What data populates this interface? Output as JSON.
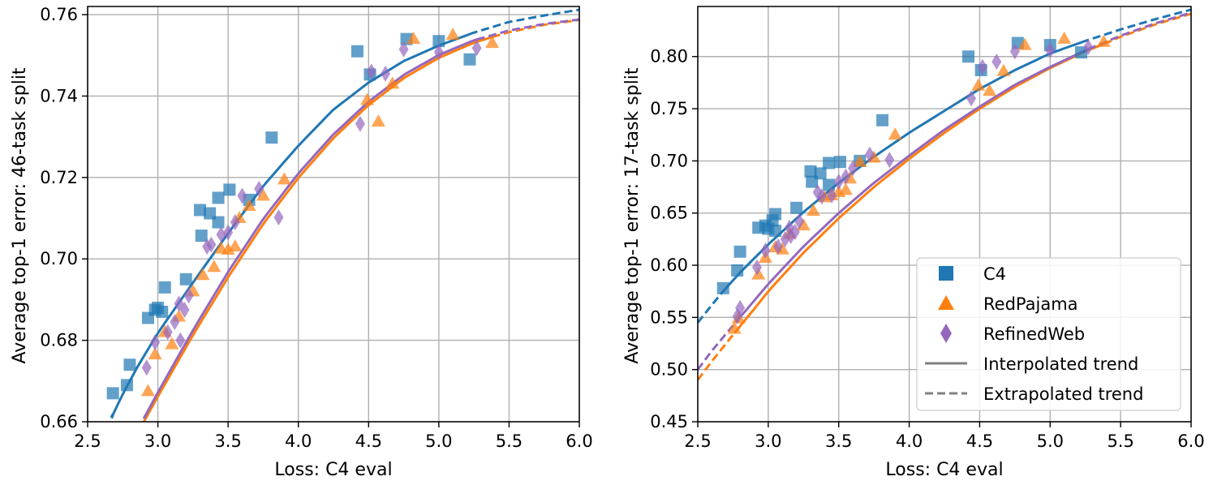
{
  "colors": {
    "c4": "#1f77b4",
    "redpajama": "#ff7f0e",
    "refinedweb": "#9467bd",
    "grid": "#b0b0b0",
    "legend_line": "#808080"
  },
  "legend": {
    "items": [
      {
        "label": "C4",
        "marker": "square",
        "color_key": "c4"
      },
      {
        "label": "RedPajama",
        "marker": "triangle",
        "color_key": "redpajama"
      },
      {
        "label": "RefinedWeb",
        "marker": "diamond",
        "color_key": "refinedweb"
      },
      {
        "label": "Interpolated trend",
        "marker": "solid-line",
        "color_key": "legend_line"
      },
      {
        "label": "Extrapolated trend",
        "marker": "dashed-line",
        "color_key": "legend_line"
      }
    ]
  },
  "chart_data": [
    {
      "type": "scatter",
      "title": "",
      "xlabel": "Loss: C4 eval",
      "ylabel": "Average top-1 error: 46-task split",
      "xlim": [
        2.5,
        6.0
      ],
      "ylim": [
        0.66,
        0.762
      ],
      "xticks": [
        2.5,
        3.0,
        3.5,
        4.0,
        4.5,
        5.0,
        5.5,
        6.0
      ],
      "yticks": [
        0.66,
        0.68,
        0.7,
        0.72,
        0.74,
        0.76
      ],
      "xtick_labels": [
        "2.5",
        "3.0",
        "3.5",
        "4.0",
        "4.5",
        "5.0",
        "5.5",
        "6.0"
      ],
      "ytick_labels": [
        "0.66",
        "0.68",
        "0.70",
        "0.72",
        "0.74",
        "0.76"
      ],
      "grid": true,
      "legend": "none",
      "series": [
        {
          "name": "C4",
          "color_key": "c4",
          "marker": "square",
          "points": [
            [
              2.68,
              0.667
            ],
            [
              2.78,
              0.669
            ],
            [
              2.8,
              0.674
            ],
            [
              2.93,
              0.6855
            ],
            [
              2.98,
              0.6875
            ],
            [
              3.0,
              0.688
            ],
            [
              3.03,
              0.687
            ],
            [
              3.05,
              0.693
            ],
            [
              3.2,
              0.695
            ],
            [
              3.3,
              0.712
            ],
            [
              3.31,
              0.7057
            ],
            [
              3.37,
              0.7112
            ],
            [
              3.43,
              0.715
            ],
            [
              3.43,
              0.709
            ],
            [
              3.51,
              0.717
            ],
            [
              3.65,
              0.7145
            ],
            [
              3.81,
              0.7298
            ],
            [
              4.42,
              0.751
            ],
            [
              4.51,
              0.7453
            ],
            [
              4.77,
              0.754
            ],
            [
              5.0,
              0.7535
            ],
            [
              5.22,
              0.749
            ]
          ]
        },
        {
          "name": "RedPajama",
          "color_key": "redpajama",
          "marker": "triangle",
          "points": [
            [
              2.93,
              0.6675
            ],
            [
              2.98,
              0.6765
            ],
            [
              3.05,
              0.682
            ],
            [
              3.1,
              0.679
            ],
            [
              3.15,
              0.6858
            ],
            [
              3.25,
              0.692
            ],
            [
              3.32,
              0.696
            ],
            [
              3.4,
              0.698
            ],
            [
              3.45,
              0.7025
            ],
            [
              3.5,
              0.7022
            ],
            [
              3.55,
              0.703
            ],
            [
              3.58,
              0.71
            ],
            [
              3.65,
              0.713
            ],
            [
              3.75,
              0.7155
            ],
            [
              3.9,
              0.7195
            ],
            [
              4.49,
              0.739
            ],
            [
              4.57,
              0.7337
            ],
            [
              4.67,
              0.743
            ],
            [
              4.82,
              0.754
            ],
            [
              5.1,
              0.755
            ],
            [
              5.38,
              0.753
            ]
          ]
        },
        {
          "name": "RefinedWeb",
          "color_key": "refinedweb",
          "marker": "diamond",
          "points": [
            [
              2.92,
              0.6733
            ],
            [
              2.98,
              0.6795
            ],
            [
              3.07,
              0.682
            ],
            [
              3.12,
              0.6845
            ],
            [
              3.15,
              0.689
            ],
            [
              3.16,
              0.68
            ],
            [
              3.19,
              0.6875
            ],
            [
              3.22,
              0.691
            ],
            [
              3.35,
              0.703
            ],
            [
              3.38,
              0.7035
            ],
            [
              3.45,
              0.706
            ],
            [
              3.5,
              0.7065
            ],
            [
              3.55,
              0.709
            ],
            [
              3.6,
              0.7155
            ],
            [
              3.72,
              0.7172
            ],
            [
              3.86,
              0.7102
            ],
            [
              4.44,
              0.7332
            ],
            [
              4.52,
              0.746
            ],
            [
              4.62,
              0.7455
            ],
            [
              4.75,
              0.7515
            ],
            [
              5.0,
              0.7508
            ],
            [
              5.27,
              0.7518
            ]
          ]
        }
      ],
      "trends": [
        {
          "name": "C4",
          "color_key": "c4",
          "solid_range": [
            2.68,
            5.22
          ],
          "dashed_low": [
            2.67,
            2.68
          ],
          "dashed_high": [
            5.22,
            6.0
          ],
          "samples_x": [
            2.67,
            2.75,
            2.85,
            3.0,
            3.25,
            3.5,
            3.75,
            4.0,
            4.25,
            4.5,
            4.75,
            5.0,
            5.25,
            5.5,
            5.75,
            6.0
          ],
          "samples_y": [
            0.661,
            0.6668,
            0.6732,
            0.6818,
            0.6942,
            0.7063,
            0.7179,
            0.7278,
            0.7367,
            0.7433,
            0.7486,
            0.7524,
            0.7556,
            0.7582,
            0.7598,
            0.7612
          ]
        },
        {
          "name": "RedPajama",
          "color_key": "redpajama",
          "solid_range": [
            2.9,
            5.38
          ],
          "dashed_low": [
            2.9,
            2.9
          ],
          "dashed_high": [
            5.38,
            6.0
          ],
          "samples_x": [
            2.9,
            3.0,
            3.25,
            3.5,
            3.75,
            4.0,
            4.25,
            4.5,
            4.75,
            5.0,
            5.25,
            5.38,
            5.5,
            5.75,
            6.0
          ],
          "samples_y": [
            0.66,
            0.6662,
            0.6813,
            0.6955,
            0.7086,
            0.7199,
            0.7297,
            0.7378,
            0.7444,
            0.7494,
            0.7531,
            0.7545,
            0.7557,
            0.7575,
            0.7587
          ]
        },
        {
          "name": "RefinedWeb",
          "color_key": "refinedweb",
          "solid_range": [
            2.92,
            5.27
          ],
          "dashed_low": [
            2.9,
            2.92
          ],
          "dashed_high": [
            5.27,
            6.0
          ],
          "samples_x": [
            2.9,
            3.0,
            3.25,
            3.5,
            3.75,
            4.0,
            4.25,
            4.5,
            4.75,
            5.0,
            5.25,
            5.5,
            5.75,
            6.0
          ],
          "samples_y": [
            0.6608,
            0.6672,
            0.6825,
            0.6968,
            0.7098,
            0.721,
            0.7306,
            0.7386,
            0.7452,
            0.7501,
            0.7537,
            0.7561,
            0.7577,
            0.7588
          ]
        }
      ]
    },
    {
      "type": "scatter",
      "title": "",
      "xlabel": "Loss: C4 eval",
      "ylabel": "Average top-1 error: 17-task split",
      "xlim": [
        2.5,
        6.0
      ],
      "ylim": [
        0.45,
        0.848
      ],
      "xticks": [
        2.5,
        3.0,
        3.5,
        4.0,
        4.5,
        5.0,
        5.5,
        6.0
      ],
      "yticks": [
        0.45,
        0.5,
        0.55,
        0.6,
        0.65,
        0.7,
        0.75,
        0.8
      ],
      "xtick_labels": [
        "2.5",
        "3.0",
        "3.5",
        "4.0",
        "4.5",
        "5.0",
        "5.5",
        "6.0"
      ],
      "ytick_labels": [
        "0.45",
        "0.50",
        "0.55",
        "0.60",
        "0.65",
        "0.70",
        "0.75",
        "0.80"
      ],
      "grid": true,
      "legend": "bottom-right",
      "series": [
        {
          "name": "C4",
          "color_key": "c4",
          "marker": "square",
          "points": [
            [
              2.68,
              0.578
            ],
            [
              2.78,
              0.595
            ],
            [
              2.8,
              0.613
            ],
            [
              2.93,
              0.636
            ],
            [
              2.98,
              0.638
            ],
            [
              3.0,
              0.635
            ],
            [
              3.03,
              0.643
            ],
            [
              3.05,
              0.649
            ],
            [
              3.05,
              0.633
            ],
            [
              3.2,
              0.655
            ],
            [
              3.3,
              0.69
            ],
            [
              3.31,
              0.68
            ],
            [
              3.37,
              0.688
            ],
            [
              3.43,
              0.698
            ],
            [
              3.43,
              0.677
            ],
            [
              3.51,
              0.699
            ],
            [
              3.65,
              0.7
            ],
            [
              3.81,
              0.739
            ],
            [
              4.42,
              0.8
            ],
            [
              4.51,
              0.787
            ],
            [
              4.77,
              0.813
            ],
            [
              5.0,
              0.811
            ],
            [
              5.22,
              0.804
            ]
          ]
        },
        {
          "name": "RedPajama",
          "color_key": "redpajama",
          "marker": "triangle",
          "points": [
            [
              2.76,
              0.539
            ],
            [
              2.79,
              0.549
            ],
            [
              2.93,
              0.591
            ],
            [
              2.98,
              0.607
            ],
            [
              3.05,
              0.617
            ],
            [
              3.1,
              0.615
            ],
            [
              3.15,
              0.63
            ],
            [
              3.25,
              0.638
            ],
            [
              3.32,
              0.652
            ],
            [
              3.4,
              0.665
            ],
            [
              3.45,
              0.667
            ],
            [
              3.5,
              0.67
            ],
            [
              3.55,
              0.672
            ],
            [
              3.58,
              0.683
            ],
            [
              3.65,
              0.699
            ],
            [
              3.75,
              0.703
            ],
            [
              3.9,
              0.725
            ],
            [
              4.49,
              0.772
            ],
            [
              4.57,
              0.767
            ],
            [
              4.67,
              0.786
            ],
            [
              4.82,
              0.811
            ],
            [
              5.1,
              0.817
            ],
            [
              5.38,
              0.814
            ]
          ]
        },
        {
          "name": "RefinedWeb",
          "color_key": "refinedweb",
          "marker": "diamond",
          "points": [
            [
              2.78,
              0.551
            ],
            [
              2.8,
              0.559
            ],
            [
              2.92,
              0.598
            ],
            [
              2.98,
              0.614
            ],
            [
              3.07,
              0.618
            ],
            [
              3.12,
              0.625
            ],
            [
              3.15,
              0.636
            ],
            [
              3.16,
              0.628
            ],
            [
              3.19,
              0.632
            ],
            [
              3.22,
              0.642
            ],
            [
              3.35,
              0.67
            ],
            [
              3.38,
              0.666
            ],
            [
              3.45,
              0.667
            ],
            [
              3.5,
              0.68
            ],
            [
              3.55,
              0.685
            ],
            [
              3.6,
              0.693
            ],
            [
              3.72,
              0.706
            ],
            [
              3.86,
              0.701
            ],
            [
              4.44,
              0.76
            ],
            [
              4.52,
              0.79
            ],
            [
              4.62,
              0.795
            ],
            [
              4.75,
              0.805
            ],
            [
              5.0,
              0.806
            ],
            [
              5.27,
              0.809
            ]
          ]
        }
      ],
      "trends": [
        {
          "name": "C4",
          "color_key": "c4",
          "solid_range": [
            2.68,
            5.22
          ],
          "dashed_low": [
            2.5,
            2.68
          ],
          "dashed_high": [
            5.22,
            6.0
          ],
          "samples_x": [
            2.5,
            2.6,
            2.68,
            2.8,
            3.0,
            3.25,
            3.5,
            3.75,
            4.0,
            4.25,
            4.5,
            4.75,
            5.0,
            5.25,
            5.5,
            5.75,
            6.0
          ],
          "samples_y": [
            0.545,
            0.562,
            0.575,
            0.593,
            0.62,
            0.651,
            0.679,
            0.704,
            0.727,
            0.748,
            0.769,
            0.787,
            0.803,
            0.815,
            0.826,
            0.836,
            0.845
          ]
        },
        {
          "name": "RedPajama",
          "color_key": "redpajama",
          "solid_range": [
            2.76,
            5.38
          ],
          "dashed_low": [
            2.5,
            2.76
          ],
          "dashed_high": [
            5.38,
            6.0
          ],
          "samples_x": [
            2.5,
            2.6,
            2.76,
            2.9,
            3.0,
            3.25,
            3.5,
            3.75,
            4.0,
            4.25,
            4.5,
            4.75,
            5.0,
            5.25,
            5.38,
            5.5,
            5.75,
            6.0
          ],
          "samples_y": [
            0.49,
            0.508,
            0.535,
            0.558,
            0.575,
            0.612,
            0.645,
            0.675,
            0.702,
            0.727,
            0.75,
            0.771,
            0.789,
            0.805,
            0.812,
            0.819,
            0.831,
            0.841
          ]
        },
        {
          "name": "RefinedWeb",
          "color_key": "refinedweb",
          "solid_range": [
            2.78,
            5.27
          ],
          "dashed_low": [
            2.5,
            2.78
          ],
          "dashed_high": [
            5.27,
            6.0
          ],
          "samples_x": [
            2.5,
            2.6,
            2.78,
            2.9,
            3.0,
            3.25,
            3.5,
            3.75,
            4.0,
            4.25,
            4.5,
            4.75,
            5.0,
            5.25,
            5.5,
            5.75,
            6.0
          ],
          "samples_y": [
            0.5,
            0.518,
            0.547,
            0.566,
            0.582,
            0.618,
            0.65,
            0.679,
            0.705,
            0.73,
            0.752,
            0.773,
            0.79,
            0.806,
            0.82,
            0.832,
            0.842
          ]
        }
      ]
    }
  ]
}
